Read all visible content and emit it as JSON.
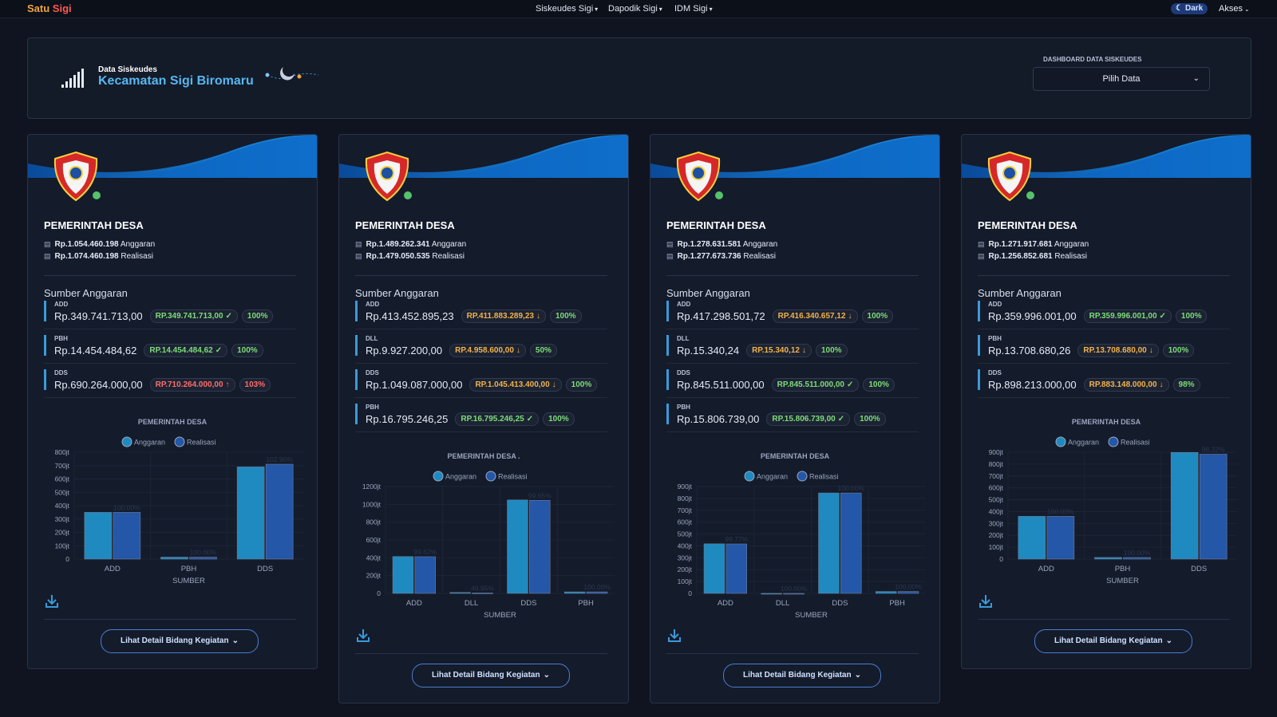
{
  "nav": {
    "brand": [
      "Satu",
      "Sigi"
    ],
    "menus": [
      "Siskeudes Sigi",
      "Dapodik Sigi",
      "IDM Sigi"
    ],
    "theme": "Dark",
    "akses": "Akses"
  },
  "header": {
    "small": "Data Siskeudes",
    "title": "Kecamatan Sigi Biromaru",
    "select_label": "DASHBOARD DATA SISKEUDES",
    "select": "Pilih Data"
  },
  "labels": {
    "anggaran": "Anggaran",
    "realisasi": "Realisasi",
    "sumber": "Sumber Anggaran",
    "button": "Lihat Detail Bidang Kegiatan"
  },
  "cards": [
    {
      "title": "PEMERINTAH DESA",
      "anggaran": "Rp.1.054.460.198",
      "realisasi": "Rp.1.074.460.198",
      "sources": [
        {
          "code": "ADD",
          "amount": "Rp.349.741.713,00",
          "realized": "RP.349.741.713,00",
          "status": "ok",
          "pct": "100%"
        },
        {
          "code": "PBH",
          "amount": "Rp.14.454.484,62",
          "realized": "RP.14.454.484,62",
          "status": "ok",
          "pct": "100%"
        },
        {
          "code": "DDS",
          "amount": "Rp.690.264.000,00",
          "realized": "RP.710.264.000,00",
          "status": "up",
          "pct": "103%"
        }
      ]
    },
    {
      "title": "PEMERINTAH DESA",
      "anggaran": "Rp.1.489.262.341",
      "realisasi": "Rp.1.479.050.535",
      "sources": [
        {
          "code": "ADD",
          "amount": "Rp.413.452.895,23",
          "realized": "RP.411.883.289,23",
          "status": "down",
          "pct": "100%"
        },
        {
          "code": "DLL",
          "amount": "Rp.9.927.200,00",
          "realized": "RP.4.958.600,00",
          "status": "down",
          "pct": "50%"
        },
        {
          "code": "DDS",
          "amount": "Rp.1.049.087.000,00",
          "realized": "RP.1.045.413.400,00",
          "status": "down",
          "pct": "100%"
        },
        {
          "code": "PBH",
          "amount": "Rp.16.795.246,25",
          "realized": "RP.16.795.246,25",
          "status": "ok",
          "pct": "100%"
        }
      ]
    },
    {
      "title": "PEMERINTAH DESA",
      "anggaran": "Rp.1.278.631.581",
      "realisasi": "Rp.1.277.673.736",
      "sources": [
        {
          "code": "ADD",
          "amount": "Rp.417.298.501,72",
          "realized": "RP.416.340.657,12",
          "status": "down",
          "pct": "100%"
        },
        {
          "code": "DLL",
          "amount": "Rp.15.340,24",
          "realized": "RP.15.340,12",
          "status": "down",
          "pct": "100%"
        },
        {
          "code": "DDS",
          "amount": "Rp.845.511.000,00",
          "realized": "RP.845.511.000,00",
          "status": "ok",
          "pct": "100%"
        },
        {
          "code": "PBH",
          "amount": "Rp.15.806.739,00",
          "realized": "RP.15.806.739,00",
          "status": "ok",
          "pct": "100%"
        }
      ]
    },
    {
      "title": "PEMERINTAH DESA",
      "anggaran": "Rp.1.271.917.681",
      "realisasi": "Rp.1.256.852.681",
      "sources": [
        {
          "code": "ADD",
          "amount": "Rp.359.996.001,00",
          "realized": "RP.359.996.001,00",
          "status": "ok",
          "pct": "100%"
        },
        {
          "code": "PBH",
          "amount": "Rp.13.708.680,26",
          "realized": "RP.13.708.680,00",
          "status": "down",
          "pct": "100%"
        },
        {
          "code": "DDS",
          "amount": "Rp.898.213.000,00",
          "realized": "RP.883.148.000,00",
          "status": "down",
          "pct": "98%"
        }
      ]
    }
  ],
  "chart_data": [
    {
      "type": "bar",
      "title": "PEMERINTAH DESA",
      "xlabel": "SUMBER",
      "categories": [
        "ADD",
        "PBH",
        "DDS"
      ],
      "series": [
        {
          "name": "Anggaran",
          "color": "#1f8ac0",
          "values": [
            349.74,
            14.45,
            690.26
          ]
        },
        {
          "name": "Realisasi",
          "color": "#2457a8",
          "values": [
            349.74,
            14.45,
            710.26
          ]
        }
      ],
      "bar_labels": [
        "100.00%",
        "100.00%",
        "102.90%"
      ],
      "ylim": [
        0,
        800
      ],
      "yticks": [
        0,
        {
          "value": 100,
          "label": "100jt"
        },
        {
          "value": 200,
          "label": "200jt"
        },
        {
          "value": 300,
          "label": "300jt"
        },
        {
          "value": 400,
          "label": "400jt"
        },
        {
          "value": 500,
          "label": "500jt"
        },
        {
          "value": 600,
          "label": "600jt"
        },
        {
          "value": 700,
          "label": "700jt"
        },
        {
          "value": 800,
          "label": "800jt"
        }
      ]
    },
    {
      "type": "bar",
      "title": "PEMERINTAH DESA .",
      "xlabel": "SUMBER",
      "categories": [
        "ADD",
        "DLL",
        "DDS",
        "PBH"
      ],
      "series": [
        {
          "name": "Anggaran",
          "color": "#1f8ac0",
          "values": [
            413.45,
            9.93,
            1049.09,
            16.8
          ]
        },
        {
          "name": "Realisasi",
          "color": "#2457a8",
          "values": [
            411.88,
            4.96,
            1045.41,
            16.8
          ]
        }
      ],
      "bar_labels": [
        "99.62%",
        "49.95%",
        "99.65%",
        "100.00%"
      ],
      "ylim": [
        0,
        1200
      ],
      "yticks": [
        0,
        {
          "value": 200,
          "label": "200jt"
        },
        {
          "value": 400,
          "label": "400jt"
        },
        {
          "value": 600,
          "label": "600jt"
        },
        {
          "value": 800,
          "label": "800jt"
        },
        {
          "value": 1000,
          "label": "1000jt"
        },
        {
          "value": 1200,
          "label": "1200jt"
        }
      ]
    },
    {
      "type": "bar",
      "title": "PEMERINTAH DESA",
      "xlabel": "SUMBER",
      "categories": [
        "ADD",
        "DLL",
        "DDS",
        "PBH"
      ],
      "series": [
        {
          "name": "Anggaran",
          "color": "#1f8ac0",
          "values": [
            417.3,
            0.015,
            845.51,
            15.81
          ]
        },
        {
          "name": "Realisasi",
          "color": "#2457a8",
          "values": [
            416.34,
            0.015,
            845.51,
            15.81
          ]
        }
      ],
      "bar_labels": [
        "99.77%",
        "100.00%",
        "100.00%",
        "100.00%"
      ],
      "ylim": [
        0,
        900
      ],
      "yticks": [
        0,
        {
          "value": 100,
          "label": "100jt"
        },
        {
          "value": 200,
          "label": "200jt"
        },
        {
          "value": 300,
          "label": "300jt"
        },
        {
          "value": 400,
          "label": "400jt"
        },
        {
          "value": 500,
          "label": "500jt"
        },
        {
          "value": 600,
          "label": "600jt"
        },
        {
          "value": 700,
          "label": "700jt"
        },
        {
          "value": 800,
          "label": "800jt"
        },
        {
          "value": 900,
          "label": "900jt"
        }
      ]
    },
    {
      "type": "bar",
      "title": "PEMERINTAH DESA",
      "xlabel": "SUMBER",
      "categories": [
        "ADD",
        "PBH",
        "DDS"
      ],
      "series": [
        {
          "name": "Anggaran",
          "color": "#1f8ac0",
          "values": [
            360.0,
            13.71,
            898.21
          ]
        },
        {
          "name": "Realisasi",
          "color": "#2457a8",
          "values": [
            360.0,
            13.71,
            883.15
          ]
        }
      ],
      "bar_labels": [
        "100.00%",
        "100.00%",
        "98.32%"
      ],
      "ylim": [
        0,
        900
      ],
      "yticks": [
        0,
        {
          "value": 100,
          "label": "100jt"
        },
        {
          "value": 200,
          "label": "200jt"
        },
        {
          "value": 300,
          "label": "300jt"
        },
        {
          "value": 400,
          "label": "400jt"
        },
        {
          "value": 500,
          "label": "500jt"
        },
        {
          "value": 600,
          "label": "600jt"
        },
        {
          "value": 700,
          "label": "700jt"
        },
        {
          "value": 800,
          "label": "800jt"
        },
        {
          "value": 900,
          "label": "900jt"
        }
      ]
    }
  ]
}
